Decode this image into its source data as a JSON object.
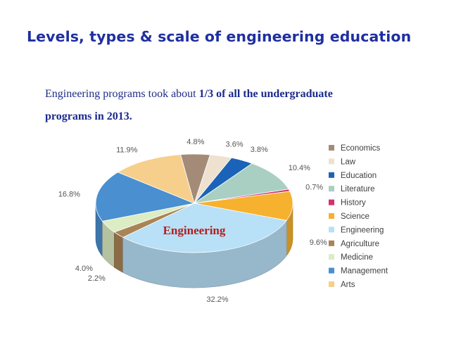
{
  "slide": {
    "title": "Levels, types & scale of engineering education",
    "text_plain_1": "Engineering programs took about ",
    "text_bold_1": "1/3 of all the undergraduate",
    "text_bold_2": "programs in 2013."
  },
  "chart_data": {
    "type": "pie",
    "style": "3d-exploded-none",
    "legend_position": "right",
    "callout": "Engineering",
    "start_category": "Economics",
    "slices": [
      {
        "name": "Economics",
        "value": 4.8,
        "label": "4.8%",
        "color": "#a38b78"
      },
      {
        "name": "Law",
        "value": 3.6,
        "label": "3.6%",
        "color": "#eee1cf"
      },
      {
        "name": "Education",
        "value": 3.8,
        "label": "3.8%",
        "color": "#1b63b8"
      },
      {
        "name": "Literature",
        "value": 10.4,
        "label": "10.4%",
        "color": "#a9cfc2"
      },
      {
        "name": "History",
        "value": 0.7,
        "label": "0.7%",
        "color": "#d6306d"
      },
      {
        "name": "Science",
        "value": 9.6,
        "label": "9.6%",
        "color": "#f6b12e"
      },
      {
        "name": "Engineering",
        "value": 32.2,
        "label": "32.2%",
        "color": "#b8e0f7"
      },
      {
        "name": "Agriculture",
        "value": 2.2,
        "label": "2.2%",
        "color": "#a98456"
      },
      {
        "name": "Medicine",
        "value": 4.0,
        "label": "4.0%",
        "color": "#dcecc3"
      },
      {
        "name": "Management",
        "value": 16.8,
        "label": "16.8%",
        "color": "#4a8fd0"
      },
      {
        "name": "Arts",
        "value": 11.9,
        "label": "11.9%",
        "color": "#f6cf8c"
      }
    ]
  }
}
